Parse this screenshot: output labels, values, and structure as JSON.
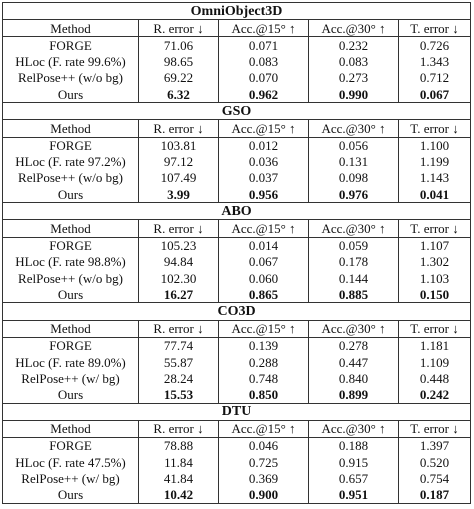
{
  "table": {
    "sections": [
      {
        "title": "OmniObject3D",
        "header": [
          "Method",
          "R. error ↓",
          "Acc.@15° ↑",
          "Acc.@30° ↑",
          "T. error ↓"
        ],
        "rows": [
          [
            "FORGE",
            "71.06",
            "0.071",
            "0.232",
            "0.726"
          ],
          [
            "HLoc (F. rate 99.6%)",
            "98.65",
            "0.083",
            "0.083",
            "1.343"
          ],
          [
            "RelPose++ (w/o bg)",
            "69.22",
            "0.070",
            "0.273",
            "0.712"
          ],
          [
            "Ours",
            "6.32",
            "0.962",
            "0.990",
            "0.067"
          ]
        ]
      },
      {
        "title": "GSO",
        "header": [
          "Method",
          "R. error ↓",
          "Acc.@15° ↑",
          "Acc.@30° ↑",
          "T. error ↓"
        ],
        "rows": [
          [
            "FORGE",
            "103.81",
            "0.012",
            "0.056",
            "1.100"
          ],
          [
            "HLoc (F. rate 97.2%)",
            "97.12",
            "0.036",
            "0.131",
            "1.199"
          ],
          [
            "RelPose++ (w/o bg)",
            "107.49",
            "0.037",
            "0.098",
            "1.143"
          ],
          [
            "Ours",
            "3.99",
            "0.956",
            "0.976",
            "0.041"
          ]
        ]
      },
      {
        "title": "ABO",
        "header": [
          "Method",
          "R. error ↓",
          "Acc.@15° ↑",
          "Acc.@30° ↑",
          "T. error ↓"
        ],
        "rows": [
          [
            "FORGE",
            "105.23",
            "0.014",
            "0.059",
            "1.107"
          ],
          [
            "HLoc (F. rate 98.8%)",
            "94.84",
            "0.067",
            "0.178",
            "1.302"
          ],
          [
            "RelPose++ (w/o bg)",
            "102.30",
            "0.060",
            "0.144",
            "1.103"
          ],
          [
            "Ours",
            "16.27",
            "0.865",
            "0.885",
            "0.150"
          ]
        ]
      },
      {
        "title": "CO3D",
        "header": [
          "Method",
          "R. error ↓",
          "Acc.@15° ↑",
          "Acc.@30° ↑",
          "T. error ↓"
        ],
        "rows": [
          [
            "FORGE",
            "77.74",
            "0.139",
            "0.278",
            "1.181"
          ],
          [
            "HLoc (F. rate 89.0%)",
            "55.87",
            "0.288",
            "0.447",
            "1.109"
          ],
          [
            "RelPose++ (w/ bg)",
            "28.24",
            "0.748",
            "0.840",
            "0.448"
          ],
          [
            "Ours",
            "15.53",
            "0.850",
            "0.899",
            "0.242"
          ]
        ]
      },
      {
        "title": "DTU",
        "header": [
          "Method",
          "R. error ↓",
          "Acc.@15° ↑",
          "Acc.@30° ↑",
          "T. error ↓"
        ],
        "rows": [
          [
            "FORGE",
            "78.88",
            "0.046",
            "0.188",
            "1.397"
          ],
          [
            "HLoc (F. rate 47.5%)",
            "11.84",
            "0.725",
            "0.915",
            "0.520"
          ],
          [
            "RelPose++ (w/ bg)",
            "41.84",
            "0.369",
            "0.657",
            "0.754"
          ],
          [
            "Ours",
            "10.42",
            "0.900",
            "0.951",
            "0.187"
          ]
        ]
      }
    ]
  }
}
